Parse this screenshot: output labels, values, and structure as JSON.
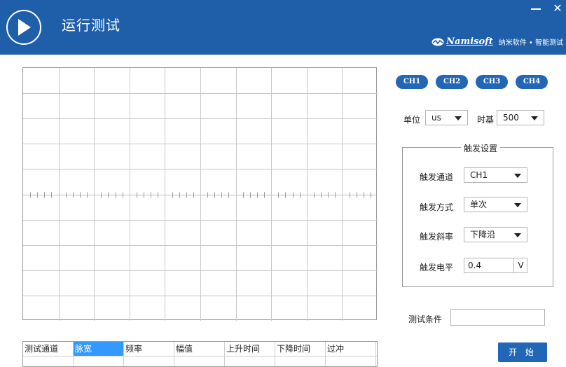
{
  "window": {
    "title": "运行测试",
    "brand_name": "Namisoft",
    "brand_tagline": "纳米软件 • 智能测试",
    "accent_color": "#1f5fa9"
  },
  "channels": [
    "CH1",
    "CH2",
    "CH3",
    "CH4"
  ],
  "timebase": {
    "unit_label": "单位",
    "unit_value": "us",
    "base_label": "时基",
    "base_value": "500"
  },
  "trigger": {
    "group_title": "触发设置",
    "channel_label": "触发通道",
    "channel_value": "CH1",
    "mode_label": "触发方式",
    "mode_value": "单次",
    "slope_label": "触发斜率",
    "slope_value": "下降沿",
    "level_label": "触发电平",
    "level_value": "0.4",
    "level_unit": "V"
  },
  "test_condition": {
    "label": "测试条件",
    "value": ""
  },
  "start_button": "开 始",
  "results_table": {
    "columns": [
      "测试通道",
      "脉宽",
      "频率",
      "幅值",
      "上升时间",
      "下降时间",
      "过冲"
    ],
    "selected_column": "脉宽",
    "rows": [
      []
    ]
  }
}
